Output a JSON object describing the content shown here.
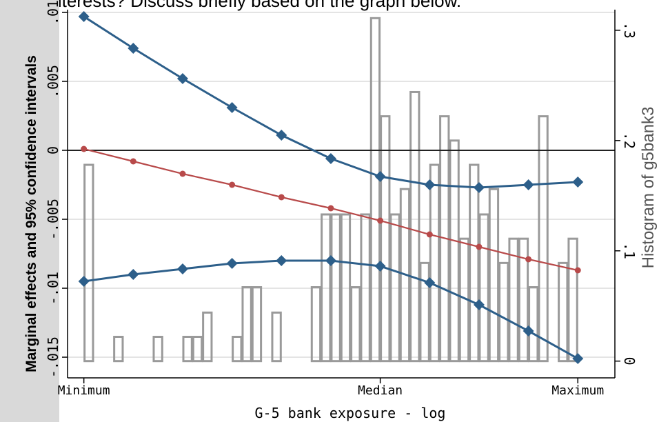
{
  "top_text": "ercial interests? Discuss briefly based on the graph below.",
  "chart_data": {
    "type": "line",
    "title": "",
    "xlabel": "G-5 bank exposure - log",
    "ylabel": "Marginal effects and 95% confidence intervals",
    "y2label": "Histogram of g5bank3",
    "x_ticks": [
      "Minimum",
      "Median",
      "Maximum"
    ],
    "y_ticks": [
      "-.015",
      "-.01",
      "-.005",
      "0",
      ".005",
      ".01"
    ],
    "y_tick_values": [
      -0.015,
      -0.01,
      -0.005,
      0,
      0.005,
      0.01
    ],
    "y2_ticks": [
      "0",
      ".1",
      ".2",
      ".3"
    ],
    "y2_tick_values": [
      0,
      0.1,
      0.2,
      0.3
    ],
    "ylim": [
      -0.0155,
      0.0102
    ],
    "y2lim": [
      -0.0027,
      0.3187
    ],
    "xlim": [
      -0.33,
      10.75
    ],
    "x_tick_positions": [
      0,
      6,
      10
    ],
    "x": [
      0,
      1,
      2,
      3,
      4,
      5,
      6,
      7,
      8,
      9,
      10
    ],
    "grid": true,
    "zero_line": true,
    "legend": "none",
    "colors": {
      "ci": "#2d5f8a",
      "effect": "#b84a4a",
      "hist": "#9a9a9a",
      "grid": "#dcdcdc"
    },
    "series": [
      {
        "role": "upper-ci",
        "values": [
          0.0097,
          0.0074,
          0.0052,
          0.0031,
          0.0011,
          -0.0006,
          -0.0019,
          -0.0025,
          -0.0027,
          -0.0025,
          -0.0023
        ]
      },
      {
        "role": "marginal-effect",
        "values": [
          0.0001,
          -0.0008,
          -0.0017,
          -0.0025,
          -0.0034,
          -0.0042,
          -0.0051,
          -0.0061,
          -0.007,
          -0.0079,
          -0.0087
        ]
      },
      {
        "role": "lower-ci",
        "values": [
          -0.0095,
          -0.009,
          -0.0086,
          -0.0082,
          -0.008,
          -0.008,
          -0.0084,
          -0.0096,
          -0.0112,
          -0.0131,
          -0.0151
        ]
      }
    ],
    "histogram": {
      "bins": [
        {
          "x0": 0.0,
          "x1": 0.2,
          "h": 0.178
        },
        {
          "x0": 0.6,
          "x1": 0.8,
          "h": 0.022
        },
        {
          "x0": 1.4,
          "x1": 1.6,
          "h": 0.022
        },
        {
          "x0": 2.0,
          "x1": 2.2,
          "h": 0.022
        },
        {
          "x0": 2.2,
          "x1": 2.4,
          "h": 0.022
        },
        {
          "x0": 2.4,
          "x1": 2.6,
          "h": 0.044
        },
        {
          "x0": 3.0,
          "x1": 3.2,
          "h": 0.022
        },
        {
          "x0": 3.2,
          "x1": 3.4,
          "h": 0.067
        },
        {
          "x0": 3.4,
          "x1": 3.6,
          "h": 0.067
        },
        {
          "x0": 3.8,
          "x1": 4.0,
          "h": 0.044
        },
        {
          "x0": 4.6,
          "x1": 4.8,
          "h": 0.067
        },
        {
          "x0": 4.8,
          "x1": 5.0,
          "h": 0.133
        },
        {
          "x0": 5.0,
          "x1": 5.2,
          "h": 0.133
        },
        {
          "x0": 5.2,
          "x1": 5.4,
          "h": 0.133
        },
        {
          "x0": 5.4,
          "x1": 5.6,
          "h": 0.067
        },
        {
          "x0": 5.6,
          "x1": 5.8,
          "h": 0.133
        },
        {
          "x0": 5.8,
          "x1": 6.0,
          "h": 0.311
        },
        {
          "x0": 6.0,
          "x1": 6.2,
          "h": 0.222
        },
        {
          "x0": 6.2,
          "x1": 6.4,
          "h": 0.133
        },
        {
          "x0": 6.4,
          "x1": 6.6,
          "h": 0.156
        },
        {
          "x0": 6.6,
          "x1": 6.8,
          "h": 0.244
        },
        {
          "x0": 6.8,
          "x1": 7.0,
          "h": 0.089
        },
        {
          "x0": 7.0,
          "x1": 7.2,
          "h": 0.178
        },
        {
          "x0": 7.2,
          "x1": 7.4,
          "h": 0.222
        },
        {
          "x0": 7.4,
          "x1": 7.6,
          "h": 0.2
        },
        {
          "x0": 7.6,
          "x1": 7.8,
          "h": 0.111
        },
        {
          "x0": 7.8,
          "x1": 8.0,
          "h": 0.178
        },
        {
          "x0": 8.0,
          "x1": 8.2,
          "h": 0.133
        },
        {
          "x0": 8.2,
          "x1": 8.4,
          "h": 0.156
        },
        {
          "x0": 8.4,
          "x1": 8.6,
          "h": 0.089
        },
        {
          "x0": 8.6,
          "x1": 8.8,
          "h": 0.111
        },
        {
          "x0": 8.8,
          "x1": 9.0,
          "h": 0.111
        },
        {
          "x0": 9.0,
          "x1": 9.2,
          "h": 0.067
        },
        {
          "x0": 9.2,
          "x1": 9.4,
          "h": 0.222
        },
        {
          "x0": 9.6,
          "x1": 9.8,
          "h": 0.089
        },
        {
          "x0": 9.8,
          "x1": 10.0,
          "h": 0.111
        }
      ]
    }
  }
}
